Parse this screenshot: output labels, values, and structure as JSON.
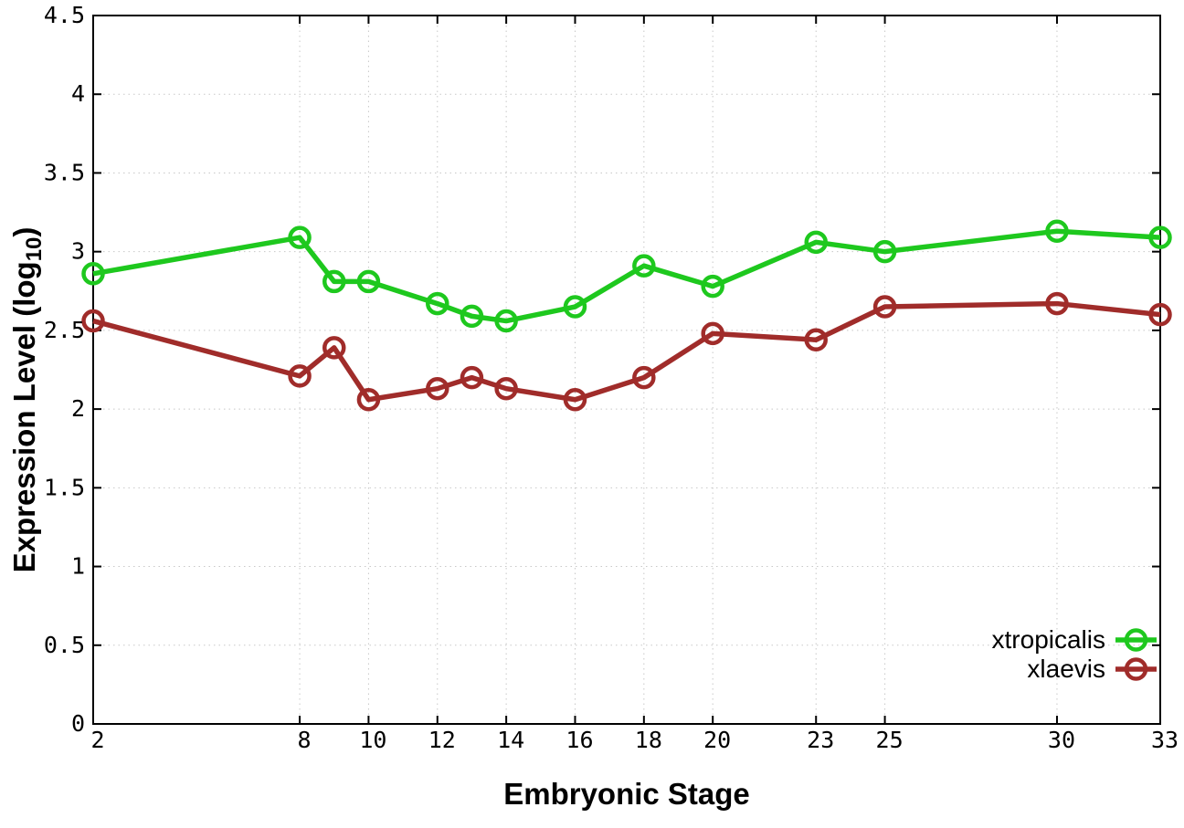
{
  "chart_data": {
    "type": "line",
    "title": "",
    "xlabel": "Embryonic Stage",
    "ylabel": "Expression Level (log10)",
    "ylabel_parts": {
      "prefix": "Expression Level (log",
      "sub": "10",
      "suffix": ")"
    },
    "x": [
      2,
      8,
      9,
      10,
      12,
      13,
      14,
      16,
      18,
      20,
      23,
      25,
      30,
      33
    ],
    "series": [
      {
        "name": "xtropicalis",
        "color": "#1ec81e",
        "values": [
          2.86,
          3.09,
          2.81,
          2.81,
          2.67,
          2.59,
          2.56,
          2.65,
          2.91,
          2.78,
          3.06,
          3.0,
          3.13,
          3.09
        ]
      },
      {
        "name": "xlaevis",
        "color": "#a02c2a",
        "values": [
          2.56,
          2.21,
          2.39,
          2.06,
          2.13,
          2.2,
          2.13,
          2.06,
          2.2,
          2.48,
          2.44,
          2.65,
          2.67,
          2.6
        ]
      }
    ],
    "xlim": [
      2,
      33
    ],
    "ylim": [
      0,
      4.5
    ],
    "x_ticks": [
      {
        "value": 2,
        "label": "2"
      },
      {
        "value": 8,
        "label": "8"
      },
      {
        "value": 10,
        "label": "10"
      },
      {
        "value": 12,
        "label": "12"
      },
      {
        "value": 14,
        "label": "14"
      },
      {
        "value": 16,
        "label": "16"
      },
      {
        "value": 18,
        "label": "18"
      },
      {
        "value": 20,
        "label": "20"
      },
      {
        "value": 23,
        "label": "23"
      },
      {
        "value": 25,
        "label": "25"
      },
      {
        "value": 30,
        "label": "30"
      },
      {
        "value": 33,
        "label": "33"
      }
    ],
    "y_ticks": [
      {
        "value": 0,
        "label": "0"
      },
      {
        "value": 0.5,
        "label": "0.5"
      },
      {
        "value": 1,
        "label": "1"
      },
      {
        "value": 1.5,
        "label": "1.5"
      },
      {
        "value": 2,
        "label": "2"
      },
      {
        "value": 2.5,
        "label": "2.5"
      },
      {
        "value": 3,
        "label": "3"
      },
      {
        "value": 3.5,
        "label": "3.5"
      },
      {
        "value": 4,
        "label": "4"
      },
      {
        "value": 4.5,
        "label": "4.5"
      }
    ],
    "grid": true,
    "marker": "open-circle",
    "legend_position": "bottom-right",
    "colors": {
      "background": "#ffffff",
      "axis": "#000000",
      "grid": "#c8c8c8",
      "tick_label": "#000000"
    }
  }
}
